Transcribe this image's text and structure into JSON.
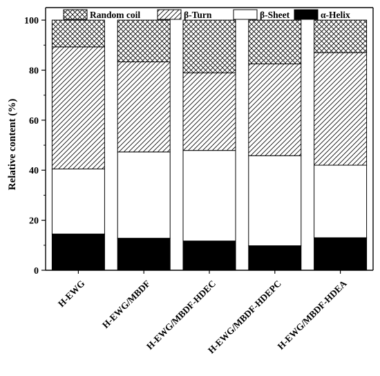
{
  "chart_data": {
    "type": "bar",
    "stacked": true,
    "categories": [
      "H-EWG",
      "H-EWG/MBDF",
      "H-EWG/MBDF-HDEC",
      "H-EWG/MBDF-HDEPC",
      "H-EWG/MBDF-HDEA"
    ],
    "series": [
      {
        "name": "α-Helix",
        "values": [
          14.5,
          12.8,
          11.7,
          9.8,
          13.0
        ],
        "fill": "solid",
        "color": "#000000"
      },
      {
        "name": "β-Sheet",
        "values": [
          26.0,
          34.5,
          36.2,
          36.0,
          29.0
        ],
        "fill": "empty",
        "color": "#ffffff"
      },
      {
        "name": "β-Turn",
        "values": [
          48.8,
          36.0,
          31.0,
          36.7,
          45.0
        ],
        "fill": "diagonal-hatch",
        "color": "#ffffff"
      },
      {
        "name": "Random coil",
        "values": [
          10.7,
          16.7,
          21.1,
          17.5,
          13.0
        ],
        "fill": "crosshatch",
        "color": "#ffffff"
      }
    ],
    "title": "",
    "xlabel": "",
    "ylabel": "Relative content (%)",
    "ylim": [
      0,
      105
    ],
    "yticks": [
      0,
      20,
      40,
      60,
      80,
      100
    ],
    "grid": false,
    "legend_position": "top",
    "legend_order": [
      "Random coil",
      "β-Turn",
      "β-Sheet",
      "α-Helix"
    ]
  }
}
